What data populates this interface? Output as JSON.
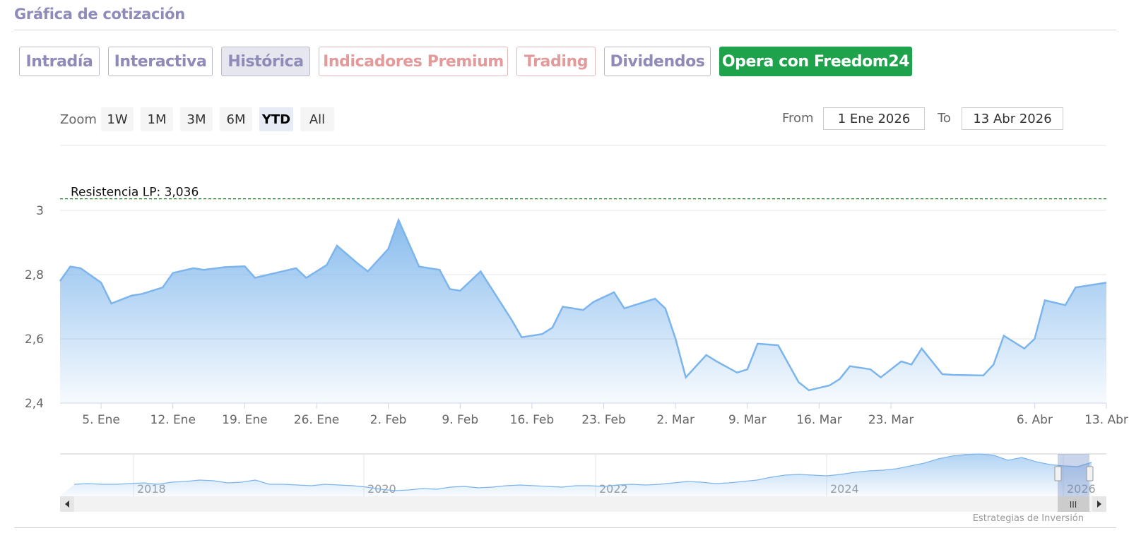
{
  "section_title": "Gráfica de cotización",
  "tabs": [
    {
      "label": "Intradía",
      "style": "normal"
    },
    {
      "label": "Interactiva",
      "style": "normal"
    },
    {
      "label": "Histórica",
      "style": "active"
    },
    {
      "label": "Indicadores Premium",
      "style": "pink"
    },
    {
      "label": "Trading",
      "style": "pink"
    },
    {
      "label": "Dividendos",
      "style": "normal"
    },
    {
      "label": "Opera con Freedom24",
      "style": "green"
    }
  ],
  "zoom": {
    "label": "Zoom",
    "buttons": [
      "1W",
      "1M",
      "3M",
      "6M",
      "YTD",
      "All"
    ],
    "selected": "YTD"
  },
  "range": {
    "from_label": "From",
    "from_value": "1 Ene 2026",
    "to_label": "To",
    "to_value": "13 Abr 2026"
  },
  "credits": "Estrategias de Inversión",
  "colors": {
    "line": "#7cb5ec",
    "accent": "#8e8bb8",
    "green": "#1ea24b",
    "resistance": "#1a7a1a"
  },
  "chart_data": {
    "type": "area",
    "resistance": {
      "label": "Resistencia LP: 3,036",
      "value": 3.036
    },
    "ylim": [
      2.4,
      3.0
    ],
    "yticks": [
      2.4,
      2.6,
      2.8,
      3.0
    ],
    "ytick_labels": [
      "2,4",
      "2,6",
      "2,8",
      "3"
    ],
    "x_start": "2026-01-01",
    "x_end": "2026-04-13",
    "xticks": [
      {
        "date": "2026-01-05",
        "label": "5. Ene"
      },
      {
        "date": "2026-01-12",
        "label": "12. Ene"
      },
      {
        "date": "2026-01-19",
        "label": "19. Ene"
      },
      {
        "date": "2026-01-26",
        "label": "26. Ene"
      },
      {
        "date": "2026-02-02",
        "label": "2. Feb"
      },
      {
        "date": "2026-02-09",
        "label": "9. Feb"
      },
      {
        "date": "2026-02-16",
        "label": "16. Feb"
      },
      {
        "date": "2026-02-23",
        "label": "23. Feb"
      },
      {
        "date": "2026-03-02",
        "label": "2. Mar"
      },
      {
        "date": "2026-03-09",
        "label": "9. Mar"
      },
      {
        "date": "2026-03-16",
        "label": "16. Mar"
      },
      {
        "date": "2026-03-23",
        "label": "23. Mar"
      },
      {
        "date": "2026-04-06",
        "label": "6. Abr"
      },
      {
        "date": "2026-04-13",
        "label": "13. Abr"
      }
    ],
    "points": [
      [
        "2026-01-01",
        2.78
      ],
      [
        "2026-01-02",
        2.825
      ],
      [
        "2026-01-03",
        2.82
      ],
      [
        "2026-01-05",
        2.775
      ],
      [
        "2026-01-06",
        2.71
      ],
      [
        "2026-01-08",
        2.735
      ],
      [
        "2026-01-09",
        2.74
      ],
      [
        "2026-01-11",
        2.76
      ],
      [
        "2026-01-12",
        2.805
      ],
      [
        "2026-01-14",
        2.82
      ],
      [
        "2026-01-15",
        2.815
      ],
      [
        "2026-01-17",
        2.823
      ],
      [
        "2026-01-19",
        2.826
      ],
      [
        "2026-01-20",
        2.79
      ],
      [
        "2026-01-22",
        2.805
      ],
      [
        "2026-01-24",
        2.82
      ],
      [
        "2026-01-25",
        2.79
      ],
      [
        "2026-01-27",
        2.83
      ],
      [
        "2026-01-28",
        2.89
      ],
      [
        "2026-01-30",
        2.835
      ],
      [
        "2026-01-31",
        2.81
      ],
      [
        "2026-02-02",
        2.88
      ],
      [
        "2026-02-03",
        2.97
      ],
      [
        "2026-02-05",
        2.825
      ],
      [
        "2026-02-07",
        2.815
      ],
      [
        "2026-02-08",
        2.755
      ],
      [
        "2026-02-09",
        2.75
      ],
      [
        "2026-02-11",
        2.81
      ],
      [
        "2026-02-12",
        2.76
      ],
      [
        "2026-02-14",
        2.66
      ],
      [
        "2026-02-15",
        2.605
      ],
      [
        "2026-02-17",
        2.615
      ],
      [
        "2026-02-18",
        2.635
      ],
      [
        "2026-02-19",
        2.7
      ],
      [
        "2026-02-21",
        2.69
      ],
      [
        "2026-02-22",
        2.715
      ],
      [
        "2026-02-24",
        2.745
      ],
      [
        "2026-02-25",
        2.695
      ],
      [
        "2026-02-27",
        2.715
      ],
      [
        "2026-02-28",
        2.725
      ],
      [
        "2026-03-01",
        2.695
      ],
      [
        "2026-03-02",
        2.6
      ],
      [
        "2026-03-03",
        2.48
      ],
      [
        "2026-03-05",
        2.55
      ],
      [
        "2026-03-06",
        2.53
      ],
      [
        "2026-03-08",
        2.495
      ],
      [
        "2026-03-09",
        2.505
      ],
      [
        "2026-03-10",
        2.585
      ],
      [
        "2026-03-12",
        2.58
      ],
      [
        "2026-03-14",
        2.465
      ],
      [
        "2026-03-15",
        2.44
      ],
      [
        "2026-03-17",
        2.455
      ],
      [
        "2026-03-18",
        2.475
      ],
      [
        "2026-03-19",
        2.515
      ],
      [
        "2026-03-21",
        2.505
      ],
      [
        "2026-03-22",
        2.48
      ],
      [
        "2026-03-24",
        2.53
      ],
      [
        "2026-03-25",
        2.52
      ],
      [
        "2026-03-26",
        2.57
      ],
      [
        "2026-03-28",
        2.49
      ],
      [
        "2026-03-29",
        2.488
      ],
      [
        "2026-04-01",
        2.486
      ],
      [
        "2026-04-02",
        2.52
      ],
      [
        "2026-04-03",
        2.61
      ],
      [
        "2026-04-05",
        2.57
      ],
      [
        "2026-04-06",
        2.6
      ],
      [
        "2026-04-07",
        2.72
      ],
      [
        "2026-04-09",
        2.705
      ],
      [
        "2026-04-10",
        2.76
      ],
      [
        "2026-04-13",
        2.775
      ]
    ],
    "navigator": {
      "year_labels": [
        "2018",
        "2020",
        "2022",
        "2024",
        "2026"
      ],
      "selected_range": "YTD 2026"
    }
  }
}
